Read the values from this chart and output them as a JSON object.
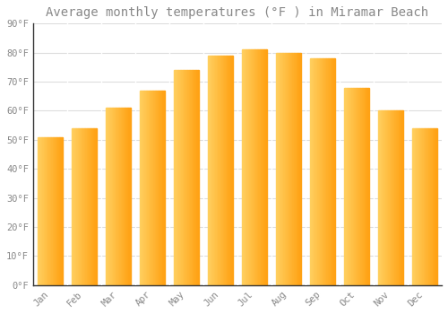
{
  "title": "Average monthly temperatures (°F ) in Miramar Beach",
  "months": [
    "Jan",
    "Feb",
    "Mar",
    "Apr",
    "May",
    "Jun",
    "Jul",
    "Aug",
    "Sep",
    "Oct",
    "Nov",
    "Dec"
  ],
  "values": [
    51,
    54,
    61,
    67,
    74,
    79,
    81,
    80,
    78,
    68,
    60,
    54
  ],
  "bar_color_left": "#FFD060",
  "bar_color_right": "#FFA010",
  "background_color": "#FFFFFF",
  "plot_bg_color": "#FFFFFF",
  "grid_color": "#DDDDDD",
  "text_color": "#888888",
  "spine_color": "#333333",
  "ylim": [
    0,
    90
  ],
  "ytick_step": 10,
  "figsize": [
    5.0,
    3.5
  ],
  "dpi": 100,
  "title_fontsize": 10,
  "tick_fontsize": 7.5,
  "font_family": "monospace"
}
